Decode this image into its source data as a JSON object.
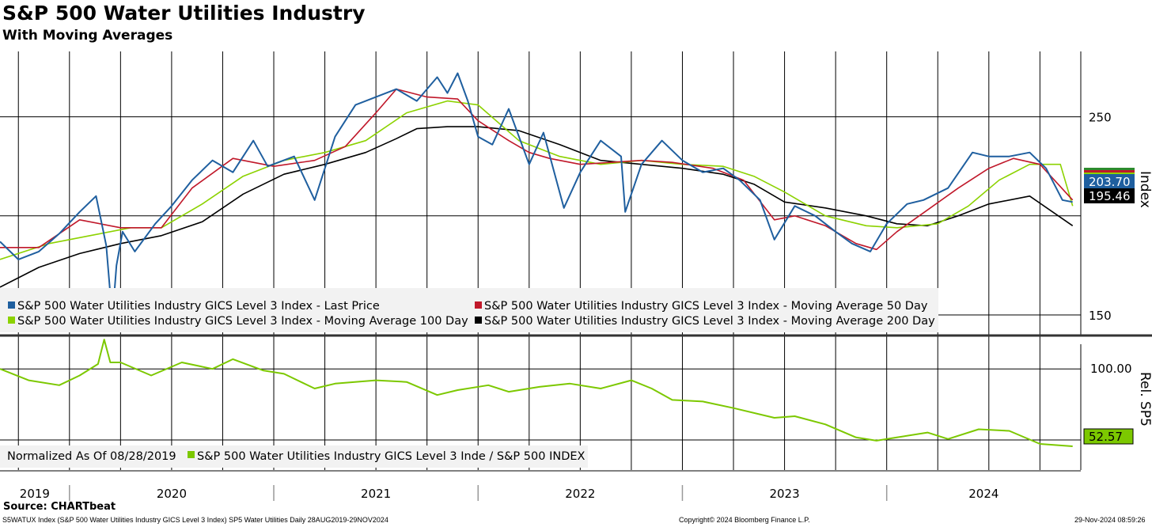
{
  "header": {
    "title": "S&P 500 Water Utilities Industry",
    "subtitle": "With Moving Averages"
  },
  "footer": {
    "source": "Source: CHARTbeat",
    "description": "S5WATUX Index (S&P 500 Water Utilities Industry GICS Level 3 Index) SP5 Water Utilities  Daily 28AUG2019-29NOV2024",
    "copyright": "Copyright© 2024 Bloomberg Finance L.P.",
    "timestamp": "29-Nov-2024 08:59:26"
  },
  "colors": {
    "last_price": "#1f5f9f",
    "ma50": "#c0182a",
    "ma100": "#8cd200",
    "ma200": "#000000",
    "relative": "#7cc800"
  },
  "chart_data": [
    {
      "type": "line",
      "panel": "top",
      "ylabel": "Index",
      "ylim": [
        140,
        283
      ],
      "yticks": [
        150,
        250
      ],
      "x_years": [
        "2019",
        "2020",
        "2021",
        "2022",
        "2023",
        "2024"
      ],
      "last_value_labels": [
        "203.70",
        "195.46"
      ],
      "legend": {
        "placement": "bottom-left",
        "entries": [
          "S&P 500 Water Utilities Industry GICS Level 3 Index - Last Price",
          "S&P 500 Water Utilities Industry GICS Level 3 Index - Moving Average 50 Day",
          "S&P 500 Water Utilities Industry GICS Level 3 Index - Moving Average 100 Day",
          "S&P 500 Water Utilities Industry GICS Level 3 Index - Moving Average 200 Day"
        ]
      },
      "series": [
        {
          "name": "S&P 500 Water Utilities Industry GICS Level 3 Index - Last Price",
          "x": [
            2019.66,
            2019.75,
            2019.85,
            2019.95,
            2020.05,
            2020.13,
            2020.18,
            2020.21,
            2020.23,
            2020.26,
            2020.32,
            2020.42,
            2020.5,
            2020.6,
            2020.7,
            2020.8,
            2020.9,
            2020.97,
            2021.1,
            2021.2,
            2021.3,
            2021.4,
            2021.5,
            2021.6,
            2021.7,
            2021.8,
            2021.85,
            2021.9,
            2021.95,
            2022.0,
            2022.07,
            2022.15,
            2022.25,
            2022.32,
            2022.42,
            2022.5,
            2022.6,
            2022.7,
            2022.72,
            2022.8,
            2022.9,
            2023.0,
            2023.1,
            2023.2,
            2023.28,
            2023.38,
            2023.45,
            2023.55,
            2023.65,
            2023.75,
            2023.83,
            2023.92,
            2024.0,
            2024.1,
            2024.18,
            2024.3,
            2024.42,
            2024.5,
            2024.6,
            2024.7,
            2024.78,
            2024.86,
            2024.91
          ],
          "y": [
            187,
            178,
            182,
            191,
            202,
            210,
            185,
            148,
            175,
            192,
            182,
            196,
            205,
            218,
            228,
            222,
            238,
            225,
            230,
            208,
            240,
            256,
            260,
            264,
            258,
            270,
            262,
            272,
            258,
            240,
            236,
            254,
            226,
            242,
            204,
            222,
            238,
            230,
            202,
            226,
            238,
            228,
            222,
            224,
            218,
            208,
            188,
            205,
            200,
            192,
            186,
            182,
            196,
            206,
            208,
            214,
            232,
            230,
            230,
            232,
            224,
            208,
            207
          ]
        },
        {
          "name": "S&P 500 Water Utilities Industry GICS Level 3 Index - Moving Average 50 Day",
          "x": [
            2019.66,
            2019.85,
            2020.05,
            2020.25,
            2020.45,
            2020.6,
            2020.8,
            2021.0,
            2021.2,
            2021.35,
            2021.5,
            2021.6,
            2021.75,
            2021.9,
            2022.0,
            2022.15,
            2022.25,
            2022.35,
            2022.5,
            2022.65,
            2022.8,
            2022.95,
            2023.15,
            2023.3,
            2023.45,
            2023.55,
            2023.7,
            2023.85,
            2023.95,
            2024.05,
            2024.2,
            2024.35,
            2024.5,
            2024.62,
            2024.75,
            2024.91
          ],
          "y": [
            184,
            184,
            198,
            194,
            194,
            214,
            229,
            225,
            228,
            235,
            252,
            264,
            260,
            259,
            248,
            238,
            232,
            229,
            226,
            227,
            228,
            227,
            224,
            218,
            198,
            200,
            195,
            186,
            183,
            192,
            203,
            214,
            224,
            229,
            226,
            208
          ]
        },
        {
          "name": "S&P 500 Water Utilities Industry GICS Level 3 Index - Moving Average 100 Day",
          "x": [
            2019.66,
            2019.9,
            2020.1,
            2020.3,
            2020.45,
            2020.65,
            2020.85,
            2021.05,
            2021.25,
            2021.45,
            2021.65,
            2021.85,
            2022.0,
            2022.2,
            2022.4,
            2022.6,
            2022.8,
            2023.0,
            2023.2,
            2023.35,
            2023.5,
            2023.7,
            2023.9,
            2024.05,
            2024.25,
            2024.4,
            2024.55,
            2024.7,
            2024.85,
            2024.91
          ],
          "y": [
            178,
            186,
            190,
            194,
            194,
            206,
            220,
            228,
            232,
            238,
            252,
            258,
            256,
            238,
            230,
            226,
            228,
            226,
            225,
            220,
            212,
            200,
            195,
            194,
            196,
            205,
            218,
            226,
            226,
            205
          ]
        },
        {
          "name": "S&P 500 Water Utilities Industry GICS Level 3 Index - Moving Average 200 Day",
          "x": [
            2019.66,
            2019.85,
            2020.05,
            2020.25,
            2020.45,
            2020.65,
            2020.85,
            2021.05,
            2021.25,
            2021.45,
            2021.6,
            2021.7,
            2021.85,
            2022.0,
            2022.2,
            2022.4,
            2022.6,
            2022.8,
            2023.0,
            2023.2,
            2023.35,
            2023.5,
            2023.7,
            2023.9,
            2024.05,
            2024.2,
            2024.35,
            2024.5,
            2024.7,
            2024.91
          ],
          "y": [
            164,
            174,
            181,
            186,
            190,
            197,
            211,
            221,
            226,
            232,
            239,
            244,
            245,
            245,
            243,
            236,
            228,
            226,
            224,
            221,
            216,
            207,
            204,
            200,
            196,
            195,
            200,
            206,
            210,
            195
          ]
        }
      ]
    },
    {
      "type": "line",
      "panel": "bottom",
      "ylabel": "Rel. SP5",
      "ylim": [
        38,
        120
      ],
      "yticks": [
        100
      ],
      "ytick_labels": [
        "100.00"
      ],
      "last_value_labels": [
        "52.57"
      ],
      "legend": {
        "placement": "bottom-left",
        "entries": [
          "Normalized As Of 08/28/2019",
          "S&P 500 Water Utilities Industry GICS Level 3 Inde / S&P 500 INDEX"
        ]
      },
      "series": [
        {
          "name": "S&P 500 Water Utilities Industry GICS Level 3 Inde / S&P 500 INDEX",
          "x": [
            2019.66,
            2019.8,
            2019.95,
            2020.05,
            2020.14,
            2020.17,
            2020.2,
            2020.25,
            2020.4,
            2020.55,
            2020.7,
            2020.8,
            2020.95,
            2021.05,
            2021.2,
            2021.3,
            2021.5,
            2021.65,
            2021.8,
            2021.9,
            2022.05,
            2022.15,
            2022.3,
            2022.45,
            2022.6,
            2022.75,
            2022.85,
            2022.95,
            2023.1,
            2023.25,
            2023.45,
            2023.55,
            2023.7,
            2023.85,
            2023.95,
            2024.05,
            2024.2,
            2024.3,
            2024.45,
            2024.6,
            2024.75,
            2024.91
          ],
          "y": [
            100,
            93,
            90,
            96,
            103,
            118,
            104,
            104,
            96,
            104,
            100,
            106,
            99,
            97,
            88,
            91,
            93,
            92,
            84,
            87,
            90,
            86,
            89,
            91,
            88,
            93,
            88,
            81,
            80,
            76,
            70,
            71,
            66,
            58,
            56,
            58,
            61,
            57,
            63,
            62,
            54,
            52.57
          ]
        }
      ]
    }
  ]
}
